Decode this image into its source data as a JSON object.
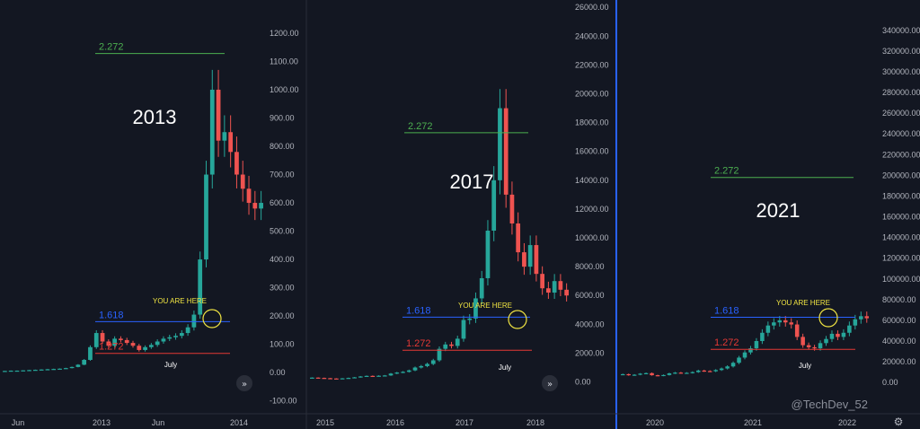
{
  "watermark": "@TechDev_52",
  "colors": {
    "background": "#131722",
    "up": "#26a69a",
    "down": "#ef5350",
    "fib_2272": "#4caf50",
    "fib_1618": "#2962ff",
    "fib_1272": "#e53935",
    "circle": "#f0e442",
    "separator": "#2962ff"
  },
  "icons": [
    "fast-forward-icon",
    "settings-icon"
  ],
  "chart_data": [
    {
      "type": "candlestick",
      "title": "2013",
      "annotation": "YOU ARE HERE",
      "month_label": "July",
      "fib_levels": [
        {
          "label": "2.272",
          "value": 1128
        },
        {
          "label": "1.618",
          "value": 180
        },
        {
          "label": "1.272",
          "value": 68
        }
      ],
      "ylim": [
        -120,
        1260
      ],
      "y_ticks": [
        -100,
        0,
        100,
        200,
        300,
        400,
        500,
        600,
        700,
        800,
        900,
        1000,
        1100,
        1200
      ],
      "y_tick_labels": [
        "-100.00",
        "0.00",
        "100.00",
        "200.00",
        "300.00",
        "400.00",
        "500.00",
        "600.00",
        "700.00",
        "800.00",
        "900.00",
        "1000.00",
        "1100.00",
        "1200.00"
      ],
      "x_tick_labels": [
        "Jun",
        "2013",
        "Jun",
        "2014"
      ],
      "series_close": [
        6,
        7,
        7,
        8,
        9,
        10,
        11,
        12,
        13,
        14,
        16,
        20,
        28,
        45,
        90,
        140,
        110,
        95,
        120,
        115,
        105,
        95,
        80,
        90,
        98,
        110,
        120,
        125,
        130,
        140,
        160,
        205,
        400,
        700,
        1000,
        820,
        850,
        780,
        700,
        650,
        600,
        580,
        600
      ]
    },
    {
      "type": "candlestick",
      "title": "2017",
      "annotation": "YOU ARE HERE",
      "month_label": "July",
      "fib_levels": [
        {
          "label": "2.272",
          "value": 17300
        },
        {
          "label": "1.618",
          "value": 4500
        },
        {
          "label": "1.272",
          "value": 2200
        }
      ],
      "ylim": [
        -900,
        26200
      ],
      "y_ticks": [
        0,
        2000,
        4000,
        6000,
        8000,
        10000,
        12000,
        14000,
        16000,
        18000,
        20000,
        22000,
        24000,
        26000
      ],
      "y_tick_labels": [
        "0.00",
        "2000.00",
        "4000.00",
        "6000.00",
        "8000.00",
        "10000.00",
        "12000.00",
        "14000.00",
        "16000.00",
        "18000.00",
        "20000.00",
        "22000.00",
        "24000.00",
        "26000.00"
      ],
      "x_tick_labels": [
        "2015",
        "2016",
        "2017",
        "2018"
      ],
      "series_close": [
        300,
        280,
        260,
        240,
        230,
        250,
        280,
        320,
        380,
        420,
        400,
        430,
        450,
        580,
        650,
        700,
        800,
        1000,
        1100,
        1250,
        1500,
        2300,
        2600,
        2500,
        3000,
        4300,
        4400,
        5800,
        7200,
        10500,
        14000,
        19000,
        13000,
        11000,
        9000,
        8000,
        9500,
        7500,
        6500,
        6200,
        7000,
        6400,
        6000
      ]
    },
    {
      "type": "candlestick",
      "title": "2021",
      "annotation": "YOU ARE HERE",
      "month_label": "July",
      "fib_levels": [
        {
          "label": "2.272",
          "value": 198000
        },
        {
          "label": "1.618",
          "value": 63000
        },
        {
          "label": "1.272",
          "value": 32000
        }
      ],
      "ylim": [
        -12000,
        352000
      ],
      "y_ticks": [
        0,
        20000,
        40000,
        60000,
        80000,
        100000,
        120000,
        140000,
        160000,
        180000,
        200000,
        220000,
        240000,
        260000,
        280000,
        300000,
        320000,
        340000
      ],
      "y_tick_labels": [
        "0.00",
        "20000.00",
        "40000.00",
        "60000.00",
        "80000.00",
        "100000.00",
        "120000.00",
        "140000.00",
        "160000.00",
        "180000.00",
        "200000.00",
        "220000.00",
        "240000.00",
        "260000.00",
        "280000.00",
        "300000.00",
        "320000.00",
        "340000.00"
      ],
      "x_tick_labels": [
        "2020",
        "2021",
        "2022"
      ],
      "series_close": [
        8000,
        7000,
        7500,
        8500,
        9000,
        7000,
        6500,
        7200,
        8800,
        9500,
        9200,
        9300,
        10000,
        11500,
        11000,
        10800,
        12000,
        13500,
        15500,
        19000,
        24000,
        29000,
        33000,
        40000,
        48000,
        55000,
        58000,
        60000,
        58000,
        56000,
        44000,
        36000,
        34000,
        33000,
        38000,
        42000,
        47000,
        44000,
        48000,
        55000,
        61000,
        64000,
        62000
      ]
    }
  ]
}
